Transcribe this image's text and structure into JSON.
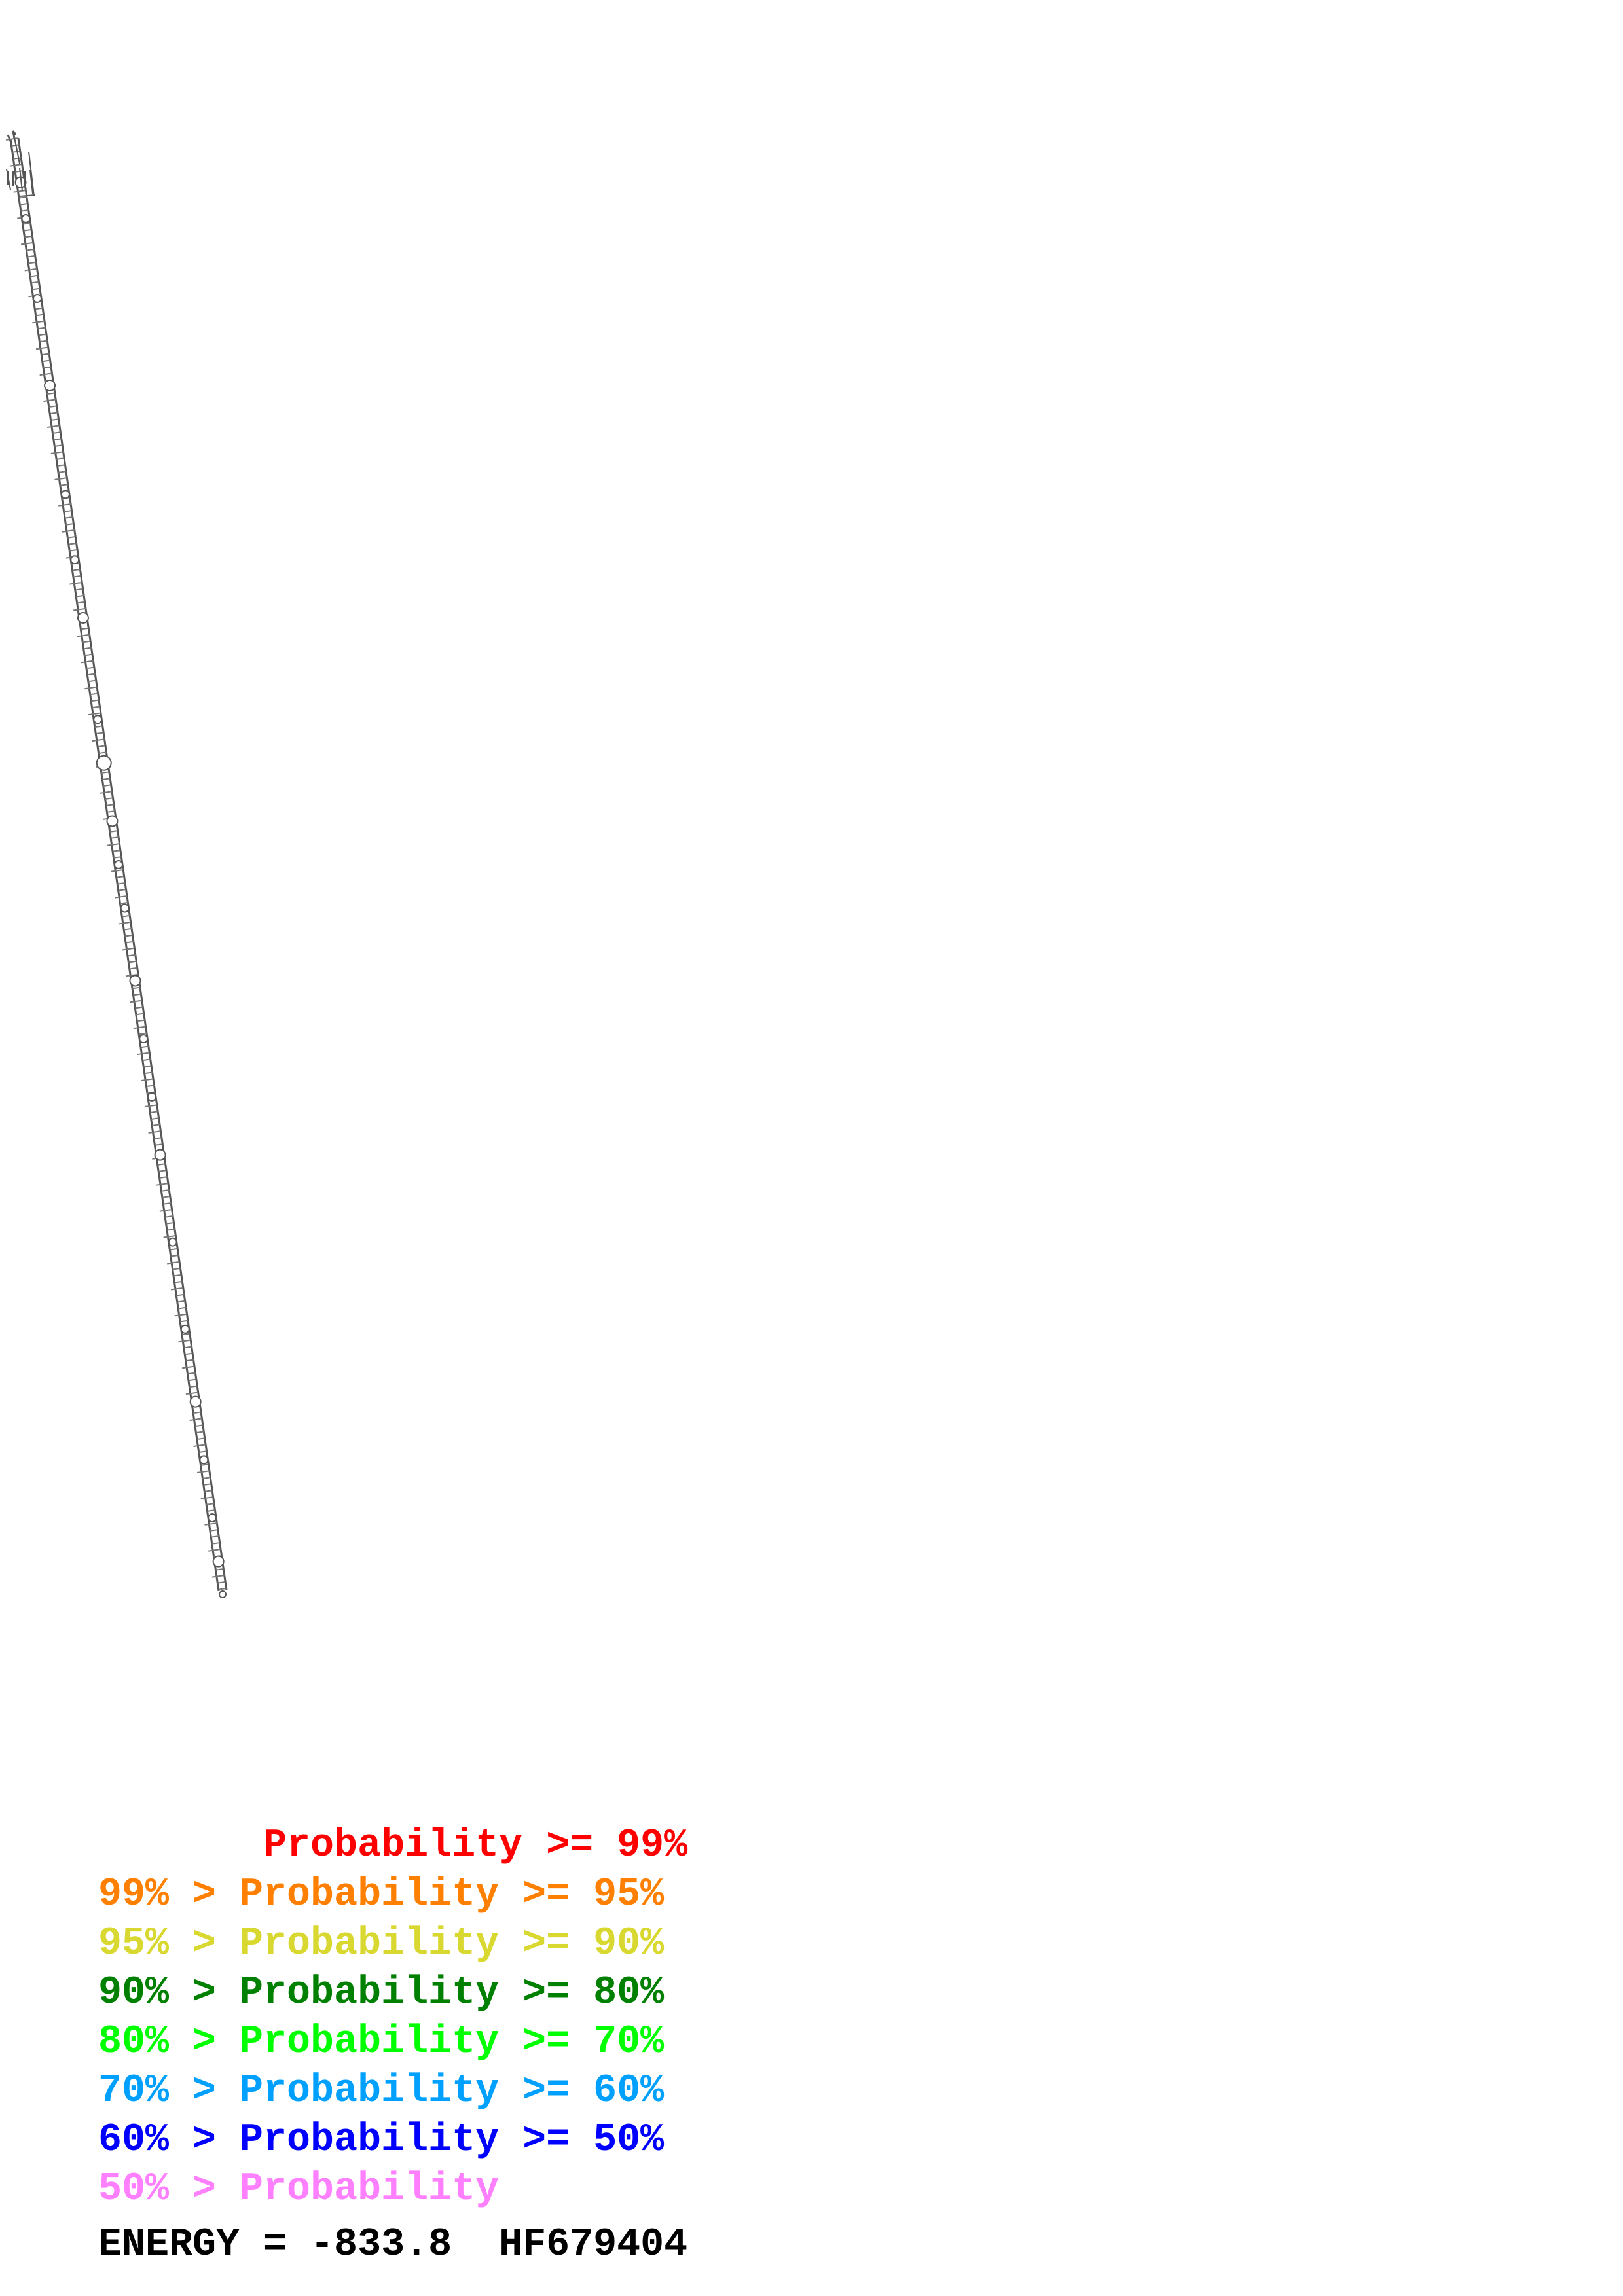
{
  "colors": {
    "backbone": "#555555",
    "c99": "#ff0000",
    "c95": "#ff8000",
    "c90": "#d8d830",
    "c80": "#008000",
    "c70": "#00ff00",
    "c60": "#00a0ff",
    "c50": "#0000ff",
    "clow": "#ff80ff"
  },
  "legend": {
    "row1": "       Probability >= 99%",
    "row2": "99% > Probability >= 95%",
    "row3": "95% > Probability >= 90%",
    "row4": "90% > Probability >= 80%",
    "row5": "80% > Probability >= 70%",
    "row6": "70% > Probability >= 60%",
    "row7": "60% > Probability >= 50%",
    "row8": "50% > Probability"
  },
  "footer": {
    "energy": "ENERGY = -833.8  HF679404"
  }
}
